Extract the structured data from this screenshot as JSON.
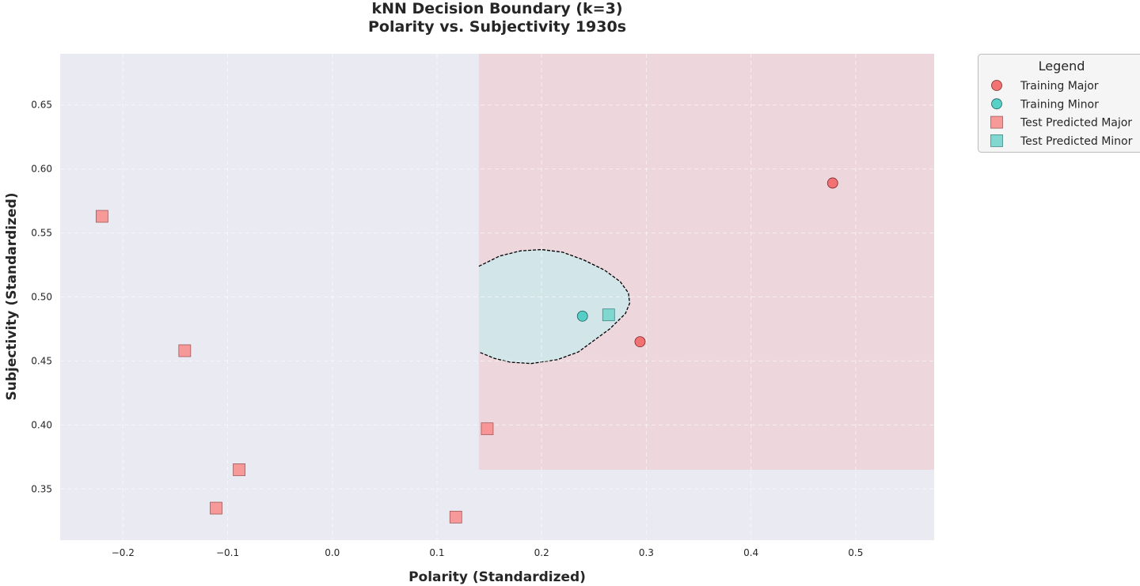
{
  "chart_data": {
    "type": "scatter",
    "title": "kNN Decision Boundary (k=3)",
    "subtitle": "Polarity vs. Subjectivity 1930s",
    "xlabel": "Polarity (Standardized)",
    "ylabel": "Subjectivity (Standardized)",
    "xlim": [
      -0.26,
      0.575
    ],
    "ylim": [
      0.31,
      0.69
    ],
    "xticks": [
      -0.2,
      -0.1,
      0.0,
      0.1,
      0.2,
      0.3,
      0.4,
      0.5
    ],
    "xtick_labels": [
      "−0.2",
      "−0.1",
      "0.0",
      "0.1",
      "0.2",
      "0.3",
      "0.4",
      "0.5"
    ],
    "yticks": [
      0.35,
      0.4,
      0.45,
      0.5,
      0.55,
      0.6,
      0.65
    ],
    "ytick_labels": [
      "0.35",
      "0.40",
      "0.45",
      "0.50",
      "0.55",
      "0.60",
      "0.65"
    ],
    "grid": true,
    "legend_position": "outside-top-right",
    "legend_title": "Legend",
    "colors": {
      "major": "#f26b6b",
      "minor": "#4ecdc4",
      "major_test": "#f88f8f",
      "minor_test": "#75d5cd",
      "region_major": "#edd7dd",
      "region_minor": "#d2e6ea",
      "plot_background": "#eaeaf2"
    },
    "regions": [
      {
        "class": "Major",
        "x": [
          0.14,
          0.575
        ],
        "y": [
          0.365,
          0.69
        ]
      }
    ],
    "boundary": {
      "class": "Minor",
      "points": [
        [
          0.14,
          0.524
        ],
        [
          0.16,
          0.532
        ],
        [
          0.18,
          0.536
        ],
        [
          0.2,
          0.537
        ],
        [
          0.22,
          0.535
        ],
        [
          0.24,
          0.529
        ],
        [
          0.26,
          0.521
        ],
        [
          0.275,
          0.512
        ],
        [
          0.283,
          0.503
        ],
        [
          0.284,
          0.495
        ],
        [
          0.28,
          0.487
        ],
        [
          0.265,
          0.475
        ],
        [
          0.25,
          0.466
        ],
        [
          0.235,
          0.457
        ],
        [
          0.215,
          0.451
        ],
        [
          0.19,
          0.448
        ],
        [
          0.17,
          0.449
        ],
        [
          0.155,
          0.452
        ],
        [
          0.14,
          0.457
        ]
      ]
    },
    "series": [
      {
        "name": "Training Major",
        "marker": "circle",
        "x": [
          0.294,
          0.478
        ],
        "y": [
          0.465,
          0.589
        ]
      },
      {
        "name": "Training Minor",
        "marker": "circle",
        "x": [
          0.239
        ],
        "y": [
          0.485
        ]
      },
      {
        "name": "Test Predicted Major",
        "marker": "square",
        "x": [
          -0.22,
          -0.141,
          -0.089,
          -0.111,
          0.148,
          0.118
        ],
        "y": [
          0.563,
          0.458,
          0.365,
          0.335,
          0.397,
          0.328
        ]
      },
      {
        "name": "Test Predicted Minor",
        "marker": "square",
        "x": [
          0.264
        ],
        "y": [
          0.486
        ]
      }
    ]
  }
}
